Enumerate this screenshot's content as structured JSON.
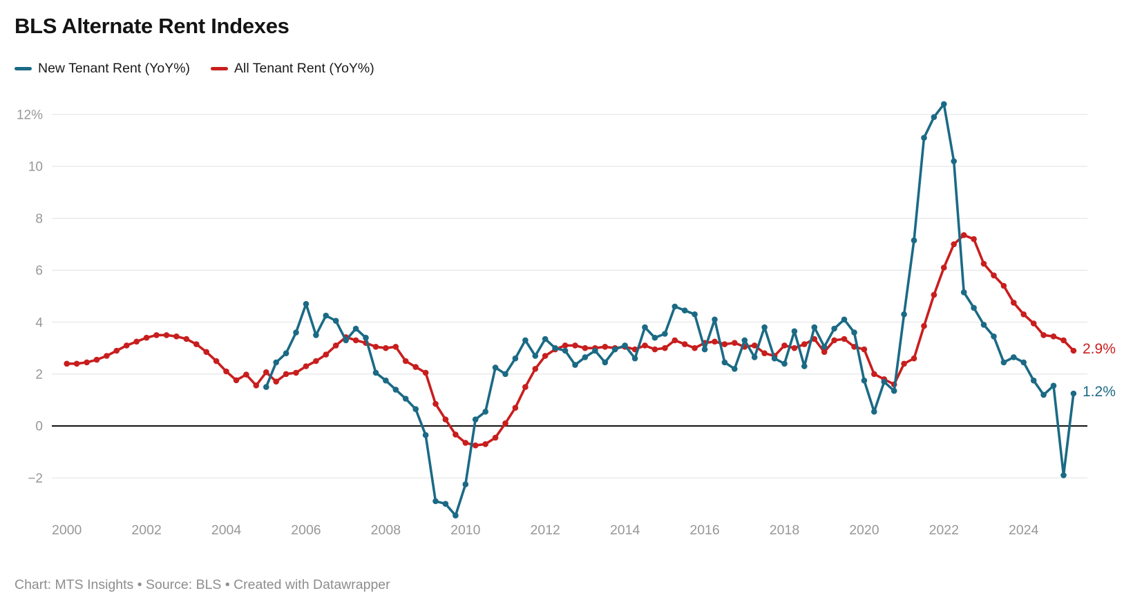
{
  "title": "BLS Alternate Rent Indexes",
  "legend": {
    "items": [
      {
        "label": "New Tenant Rent (YoY%)",
        "color": "#1b6a85"
      },
      {
        "label": "All Tenant Rent (YoY%)",
        "color": "#c81e1e"
      }
    ]
  },
  "footer": {
    "text": "Chart: MTS Insights • Source: BLS • Created with Datawrapper"
  },
  "chart_data": {
    "type": "line",
    "title": "BLS Alternate Rent Indexes",
    "xlabel": "",
    "ylabel": "",
    "grid": "horizontal",
    "legend_position": "top-left",
    "x_unit": "decimal year, quarterly points",
    "xlim": [
      1999.65,
      2025.65
    ],
    "ylim": [
      -3.7,
      12.9
    ],
    "x_tick_values": [
      2000,
      2002,
      2004,
      2006,
      2008,
      2010,
      2012,
      2014,
      2016,
      2018,
      2020,
      2022,
      2024
    ],
    "x_tick_labels": [
      "2000",
      "2002",
      "2004",
      "2006",
      "2008",
      "2010",
      "2012",
      "2014",
      "2016",
      "2018",
      "2020",
      "2022",
      "2024"
    ],
    "y_ticks": [
      {
        "value": -2,
        "label": "−2"
      },
      {
        "value": 0,
        "label": "0"
      },
      {
        "value": 2,
        "label": "2"
      },
      {
        "value": 4,
        "label": "4"
      },
      {
        "value": 6,
        "label": "6"
      },
      {
        "value": 8,
        "label": "8"
      },
      {
        "value": 10,
        "label": "10"
      },
      {
        "value": 12,
        "label": "12%"
      }
    ],
    "series": [
      {
        "name": "All Tenant Rent (YoY%)",
        "color": "#c81e1e",
        "x_start": 2000.0,
        "x_step": 0.25,
        "values": [
          2.4,
          2.4,
          2.45,
          2.55,
          2.7,
          2.9,
          3.1,
          3.25,
          3.4,
          3.5,
          3.5,
          3.45,
          3.35,
          3.15,
          2.85,
          2.5,
          2.1,
          1.76,
          1.98,
          1.56,
          2.07,
          1.71,
          2.0,
          2.05,
          2.3,
          2.5,
          2.75,
          3.1,
          3.42,
          3.3,
          3.2,
          3.05,
          3.0,
          3.05,
          2.5,
          2.27,
          2.05,
          0.85,
          0.25,
          -0.33,
          -0.65,
          -0.75,
          -0.7,
          -0.45,
          0.1,
          0.7,
          1.5,
          2.2,
          2.7,
          2.95,
          3.1,
          3.1,
          3.0,
          3.0,
          3.05,
          3.0,
          3.05,
          2.95,
          3.1,
          2.95,
          3.0,
          3.3,
          3.15,
          3.0,
          3.2,
          3.25,
          3.15,
          3.2,
          3.05,
          3.1,
          2.8,
          2.7,
          3.1,
          3.0,
          3.15,
          3.35,
          2.85,
          3.3,
          3.35,
          3.05,
          2.95,
          2.0,
          1.8,
          1.6,
          2.4,
          2.6,
          3.85,
          5.05,
          6.1,
          7.0,
          7.35,
          7.2,
          6.25,
          5.8,
          5.4,
          4.75,
          4.3,
          3.95,
          3.5,
          3.45,
          3.3,
          2.9
        ]
      },
      {
        "name": "New Tenant Rent (YoY%)",
        "color": "#1b6a85",
        "x_start": 2005.0,
        "x_step": 0.25,
        "values": [
          1.5,
          2.45,
          2.8,
          3.6,
          4.7,
          3.5,
          4.25,
          4.05,
          3.3,
          3.75,
          3.4,
          2.05,
          1.75,
          1.4,
          1.05,
          0.65,
          -0.35,
          -2.9,
          -3.0,
          -3.45,
          -2.25,
          0.25,
          0.55,
          2.25,
          2.0,
          2.6,
          3.3,
          2.7,
          3.35,
          3.0,
          2.9,
          2.35,
          2.65,
          2.9,
          2.45,
          2.95,
          3.1,
          2.6,
          3.8,
          3.4,
          3.55,
          4.6,
          4.45,
          4.3,
          2.95,
          4.1,
          2.45,
          2.2,
          3.3,
          2.65,
          3.8,
          2.6,
          2.4,
          3.65,
          2.3,
          3.8,
          3.05,
          3.75,
          4.1,
          3.6,
          1.75,
          0.55,
          1.7,
          1.35,
          4.3,
          7.15,
          11.1,
          11.9,
          12.4,
          10.2,
          5.15,
          4.55,
          3.9,
          3.45,
          2.45,
          2.65,
          2.45,
          1.75,
          1.2,
          1.55,
          -1.9,
          1.25
        ]
      }
    ],
    "end_labels": [
      {
        "text": "2.9%",
        "value": 2.95,
        "color": "#c81e1e",
        "series": "All Tenant Rent (YoY%)"
      },
      {
        "text": "1.2%",
        "value": 1.3,
        "color": "#1b6a85",
        "series": "New Tenant Rent (YoY%)"
      }
    ]
  }
}
